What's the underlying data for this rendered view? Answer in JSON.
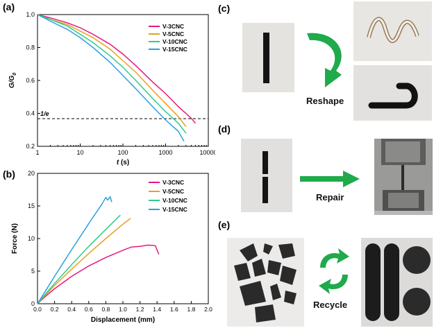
{
  "panels": {
    "a": "(a)",
    "b": "(b)",
    "c": "(c)",
    "d": "(d)",
    "e": "(e)"
  },
  "chart_data": [
    {
      "type": "line",
      "panel": "a",
      "xlabel_italic": "t",
      "xlabel_unit": " (s)",
      "ylabel": "G/G",
      "ylabel_sub": "0",
      "xscale": "log",
      "xlim": [
        1,
        10000
      ],
      "ylim": [
        0.2,
        1.0
      ],
      "xticks": [
        1,
        10,
        100,
        1000,
        10000
      ],
      "xticklabels": [
        "1",
        "10",
        "100",
        "1000",
        "10000"
      ],
      "yticks": [
        0.2,
        0.4,
        0.6,
        0.8,
        1.0
      ],
      "yticklabels": [
        "0.2",
        "0.4",
        "0.6",
        "0.8",
        "1.0"
      ],
      "reference_line": {
        "y": 0.368,
        "label": "1/e",
        "style": "dashed"
      },
      "legend_position": "top-right",
      "series": [
        {
          "name": "V-3CNC",
          "color": "#e6177d",
          "x": [
            1,
            2,
            5,
            10,
            20,
            50,
            100,
            200,
            500,
            1000,
            2000,
            3000,
            4000,
            5000
          ],
          "y": [
            1.0,
            0.98,
            0.95,
            0.92,
            0.88,
            0.82,
            0.76,
            0.69,
            0.59,
            0.52,
            0.44,
            0.4,
            0.37,
            0.34
          ]
        },
        {
          "name": "V-5CNC",
          "color": "#e9a020",
          "x": [
            1,
            2,
            5,
            10,
            20,
            50,
            100,
            200,
            500,
            1000,
            2000,
            3000
          ],
          "y": [
            1.0,
            0.97,
            0.94,
            0.9,
            0.86,
            0.79,
            0.72,
            0.65,
            0.54,
            0.46,
            0.38,
            0.32
          ]
        },
        {
          "name": "V-10CNC",
          "color": "#2ecc86",
          "x": [
            1,
            2,
            5,
            10,
            20,
            50,
            100,
            200,
            500,
            1000,
            2000,
            3000
          ],
          "y": [
            1.0,
            0.97,
            0.93,
            0.88,
            0.83,
            0.75,
            0.68,
            0.6,
            0.49,
            0.41,
            0.34,
            0.28
          ]
        },
        {
          "name": "V-15CNC",
          "color": "#2a9fe0",
          "x": [
            1,
            2,
            5,
            10,
            20,
            50,
            100,
            200,
            500,
            1000,
            2000,
            2700
          ],
          "y": [
            1.0,
            0.96,
            0.91,
            0.86,
            0.8,
            0.71,
            0.63,
            0.55,
            0.44,
            0.36,
            0.29,
            0.23
          ]
        }
      ]
    },
    {
      "type": "line",
      "panel": "b",
      "xlabel": "Displacement (mm)",
      "ylabel": "Force (N)",
      "xlim": [
        0.0,
        2.0
      ],
      "ylim": [
        0,
        20
      ],
      "xticks": [
        0.0,
        0.2,
        0.4,
        0.6,
        0.8,
        1.0,
        1.2,
        1.4,
        1.6,
        1.8,
        2.0
      ],
      "xticklabels": [
        "0.0",
        "0.2",
        "0.4",
        "0.6",
        "0.8",
        "1.0",
        "1.2",
        "1.4",
        "1.6",
        "1.8",
        "2.0"
      ],
      "yticks": [
        0,
        5,
        10,
        15,
        20
      ],
      "yticklabels": [
        "0",
        "5",
        "10",
        "15",
        "20"
      ],
      "legend_position": "top-right",
      "series": [
        {
          "name": "V-3CNC",
          "color": "#e6177d",
          "x": [
            0,
            0.1,
            0.2,
            0.4,
            0.6,
            0.8,
            1.0,
            1.1,
            1.2,
            1.3,
            1.38,
            1.42
          ],
          "y": [
            0,
            1.2,
            2.3,
            4.2,
            5.8,
            7.1,
            8.2,
            8.7,
            8.8,
            9.0,
            8.9,
            7.6
          ]
        },
        {
          "name": "V-5CNC",
          "color": "#e9a020",
          "x": [
            0,
            0.1,
            0.2,
            0.4,
            0.6,
            0.8,
            1.0,
            1.09
          ],
          "y": [
            0,
            1.4,
            2.8,
            5.3,
            7.7,
            10.0,
            12.2,
            13.1
          ]
        },
        {
          "name": "V-10CNC",
          "color": "#2ecc86",
          "x": [
            0,
            0.1,
            0.2,
            0.4,
            0.6,
            0.8,
            0.97
          ],
          "y": [
            0,
            1.6,
            3.1,
            6.0,
            8.8,
            11.4,
            13.6
          ]
        },
        {
          "name": "V-15CNC",
          "color": "#2a9fe0",
          "x": [
            0,
            0.1,
            0.2,
            0.4,
            0.6,
            0.75,
            0.8,
            0.82,
            0.85,
            0.87
          ],
          "y": [
            0,
            2.1,
            4.2,
            8.3,
            12.3,
            15.2,
            16.3,
            15.9,
            16.4,
            15.6
          ]
        }
      ]
    }
  ],
  "photos": {
    "c": {
      "arrow_label": "Reshape"
    },
    "d": {
      "arrow_label": "Repair"
    },
    "e": {
      "arrow_label": "Recycle"
    }
  },
  "colors": {
    "arrow_green": "#1faa4b"
  }
}
